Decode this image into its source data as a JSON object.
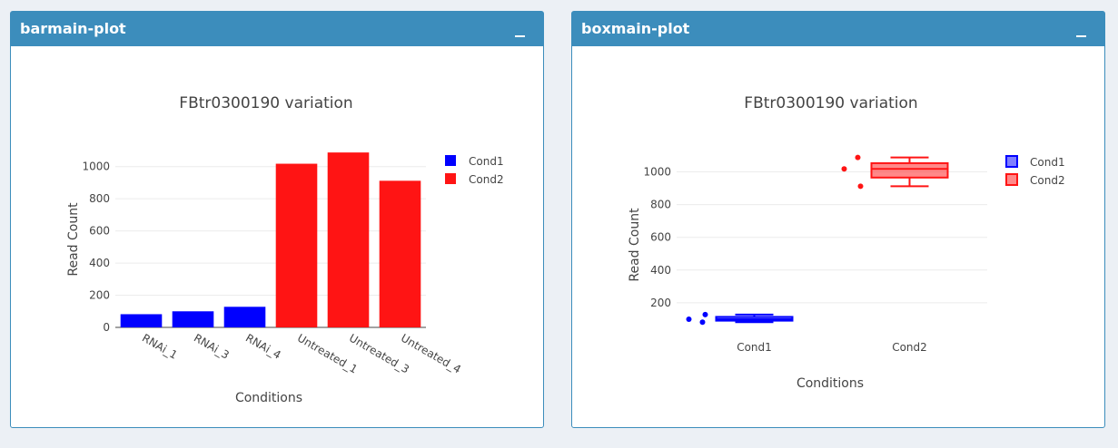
{
  "panels": {
    "bar": {
      "title": "barmain-plot"
    },
    "box": {
      "title": "boxmain-plot"
    }
  },
  "chart_data": [
    {
      "type": "bar",
      "title": "FBtr0300190 variation",
      "xlabel": "Conditions",
      "ylabel": "Read Count",
      "ylim": [
        0,
        1100
      ],
      "yticks": [
        0,
        200,
        400,
        600,
        800,
        1000
      ],
      "categories": [
        "RNAi_1",
        "RNAi_3",
        "RNAi_4",
        "Untreated_1",
        "Untreated_3",
        "Untreated_4"
      ],
      "values": [
        82,
        100,
        128,
        1018,
        1088,
        912
      ],
      "groups": [
        "Cond1",
        "Cond1",
        "Cond1",
        "Cond2",
        "Cond2",
        "Cond2"
      ],
      "legend": [
        {
          "name": "Cond1",
          "color": "#0000ff"
        },
        {
          "name": "Cond2",
          "color": "#ff1414"
        }
      ],
      "grid": true,
      "legend_position": "top-right"
    },
    {
      "type": "box",
      "title": "FBtr0300190 variation",
      "xlabel": "Conditions",
      "ylabel": "Read Count",
      "ylim": [
        50,
        1130
      ],
      "yticks": [
        200,
        400,
        600,
        800,
        1000
      ],
      "categories": [
        "Cond1",
        "Cond2"
      ],
      "series": [
        {
          "name": "Cond1",
          "color": "#0000ff",
          "points": [
            100,
            82,
            128
          ],
          "min": 82,
          "q1": 91,
          "median": 100,
          "q3": 114,
          "max": 128
        },
        {
          "name": "Cond2",
          "color": "#ff1414",
          "points": [
            1018,
            1088,
            912
          ],
          "min": 912,
          "q1": 965,
          "median": 1018,
          "q3": 1053,
          "max": 1088
        }
      ],
      "grid": true,
      "legend_position": "top-right"
    }
  ]
}
